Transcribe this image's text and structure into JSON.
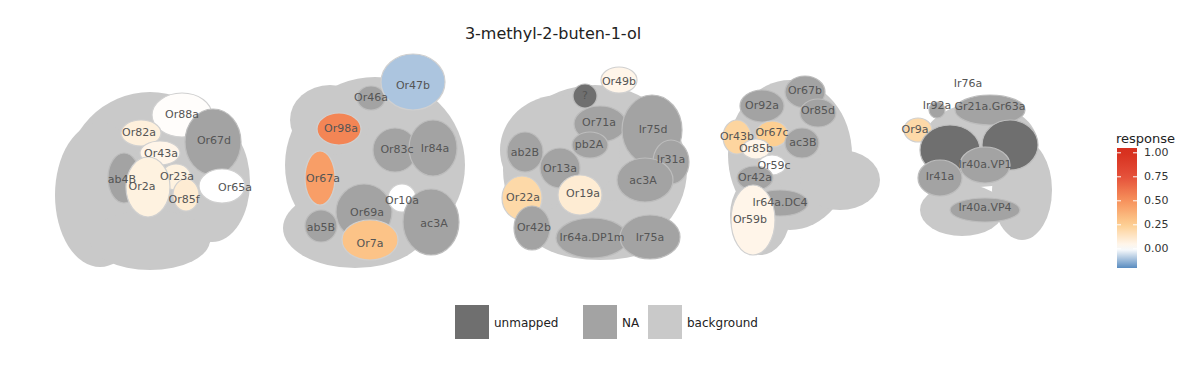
{
  "chart_data": {
    "type": "glomerulus_map",
    "title": "3-methyl-2-buten-1-ol",
    "panels": [
      {
        "glomeruli": [
          {
            "label": "Or88a",
            "response": 0.01
          },
          {
            "label": "Or82a",
            "response": 0.08
          },
          {
            "label": "Or67d",
            "response": null
          },
          {
            "label": "ab4B",
            "response": null
          },
          {
            "label": "Or43a",
            "response": 0.05
          },
          {
            "label": "Or23a",
            "response": 0.07
          },
          {
            "label": "Or2a",
            "response": 0.07
          },
          {
            "label": "Or85f",
            "response": 0.1
          },
          {
            "label": "Or65a",
            "response": 0.0
          }
        ]
      },
      {
        "glomeruli": [
          {
            "label": "Or46a",
            "response": null
          },
          {
            "label": "Or47b",
            "response": -0.1
          },
          {
            "label": "Or98a",
            "response": 0.55
          },
          {
            "label": "Or83c",
            "response": null
          },
          {
            "label": "Ir84a",
            "response": null
          },
          {
            "label": "Or67a",
            "response": 0.45
          },
          {
            "label": "Or69a",
            "response": null
          },
          {
            "label": "Or10a",
            "response": 0.0
          },
          {
            "label": "ab5B",
            "response": null
          },
          {
            "label": "Or7a",
            "response": 0.3
          },
          {
            "label": "ac3A",
            "response": null
          }
        ]
      },
      {
        "glomeruli": [
          {
            "label": "?",
            "response": null,
            "unmapped": true
          },
          {
            "label": "Or49b",
            "response": 0.05
          },
          {
            "label": "Or71a",
            "response": null
          },
          {
            "label": "Ir75d",
            "response": null
          },
          {
            "label": "ab2B",
            "response": null
          },
          {
            "label": "pb2A",
            "response": null
          },
          {
            "label": "Ir31a",
            "response": null
          },
          {
            "label": "Or13a",
            "response": null
          },
          {
            "label": "Or19a",
            "response": 0.1
          },
          {
            "label": "ac3A",
            "response": null
          },
          {
            "label": "Or22a",
            "response": 0.2
          },
          {
            "label": "Or42b",
            "response": null
          },
          {
            "label": "Ir64a.DP1m",
            "response": null
          },
          {
            "label": "Ir75a",
            "response": null
          }
        ]
      },
      {
        "glomeruli": [
          {
            "label": "Or92a",
            "response": null
          },
          {
            "label": "Or67b",
            "response": null
          },
          {
            "label": "Or85d",
            "response": null
          },
          {
            "label": "Or43b",
            "response": 0.22
          },
          {
            "label": "Or67c",
            "response": 0.25
          },
          {
            "label": "Or85b",
            "response": 0.05
          },
          {
            "label": "ac3B",
            "response": null
          },
          {
            "label": "Or59c",
            "response": 0.0
          },
          {
            "label": "Or42a",
            "response": null
          },
          {
            "label": "Ir64a.DC4",
            "response": null
          },
          {
            "label": "Or59b",
            "response": 0.05
          }
        ]
      },
      {
        "glomeruli": [
          {
            "label": "Ir76a",
            "response": null
          },
          {
            "label": "Ir92a",
            "response": null
          },
          {
            "label": "Or9a",
            "response": 0.2
          },
          {
            "label": "Gr21a.Gr63a",
            "response": null
          },
          {
            "label": null,
            "response": null,
            "unmapped": true
          },
          {
            "label": null,
            "response": null,
            "unmapped": true
          },
          {
            "label": "Ir40a.VP1",
            "response": null
          },
          {
            "label": "Ir41a",
            "response": null
          },
          {
            "label": "Ir40a.VP4",
            "response": null
          }
        ]
      }
    ],
    "color_bar": {
      "title": "response",
      "range": [
        -0.2,
        1.05
      ],
      "ticks": [
        {
          "value": 1,
          "label": "1.00"
        },
        {
          "value": 0.75,
          "label": "0.75"
        },
        {
          "value": 0.5,
          "label": "0.50"
        },
        {
          "value": 0.25,
          "label": "0.25"
        },
        {
          "value": 0,
          "label": "0.00"
        }
      ]
    },
    "status_legend": [
      "unmapped",
      "NA",
      "background"
    ]
  }
}
